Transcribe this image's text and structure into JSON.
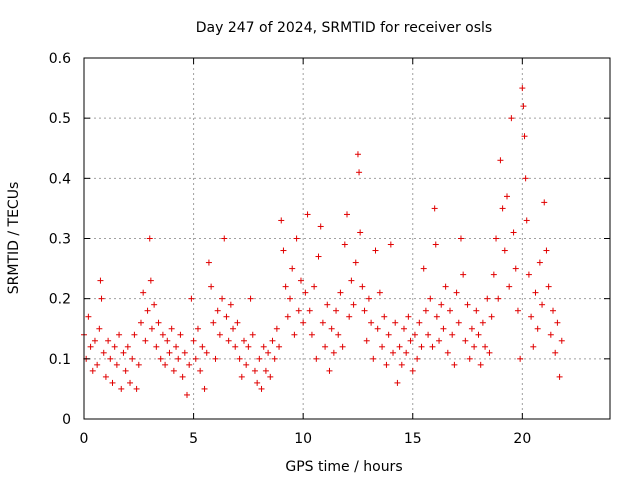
{
  "chart_data": {
    "type": "scatter",
    "title": "Day 247 of 2024, SRMTID for receiver osls",
    "xlabel": "GPS time / hours",
    "ylabel": "SRMTID / TECUs",
    "xlim": [
      0,
      24
    ],
    "ylim": [
      0,
      0.6
    ],
    "xticks": [
      0,
      5,
      10,
      15,
      20
    ],
    "xtick_labels": [
      "0",
      "5",
      "10",
      "15",
      "20"
    ],
    "yticks": [
      0,
      0.1,
      0.2,
      0.3,
      0.4,
      0.5,
      0.6
    ],
    "ytick_labels": [
      "0",
      "0.1",
      "0.2",
      "0.3",
      "0.4",
      "0.5",
      "0.6"
    ],
    "grid": true,
    "marker": "plus",
    "color": "#e00000",
    "series": [
      {
        "name": "SRMTID",
        "points": [
          [
            0.0,
            0.14
          ],
          [
            0.1,
            0.1
          ],
          [
            0.2,
            0.17
          ],
          [
            0.3,
            0.12
          ],
          [
            0.4,
            0.08
          ],
          [
            0.5,
            0.13
          ],
          [
            0.6,
            0.09
          ],
          [
            0.7,
            0.15
          ],
          [
            0.75,
            0.23
          ],
          [
            0.8,
            0.2
          ],
          [
            0.9,
            0.11
          ],
          [
            1.0,
            0.07
          ],
          [
            1.1,
            0.13
          ],
          [
            1.2,
            0.1
          ],
          [
            1.3,
            0.06
          ],
          [
            1.4,
            0.12
          ],
          [
            1.5,
            0.09
          ],
          [
            1.6,
            0.14
          ],
          [
            1.7,
            0.05
          ],
          [
            1.8,
            0.11
          ],
          [
            1.9,
            0.08
          ],
          [
            2.0,
            0.12
          ],
          [
            2.1,
            0.06
          ],
          [
            2.2,
            0.1
          ],
          [
            2.3,
            0.14
          ],
          [
            2.4,
            0.05
          ],
          [
            2.5,
            0.09
          ],
          [
            2.6,
            0.16
          ],
          [
            2.7,
            0.21
          ],
          [
            2.8,
            0.13
          ],
          [
            2.9,
            0.18
          ],
          [
            3.0,
            0.3
          ],
          [
            3.05,
            0.23
          ],
          [
            3.1,
            0.15
          ],
          [
            3.2,
            0.19
          ],
          [
            3.3,
            0.12
          ],
          [
            3.4,
            0.16
          ],
          [
            3.5,
            0.1
          ],
          [
            3.6,
            0.14
          ],
          [
            3.7,
            0.09
          ],
          [
            3.8,
            0.13
          ],
          [
            3.9,
            0.11
          ],
          [
            4.0,
            0.15
          ],
          [
            4.1,
            0.08
          ],
          [
            4.2,
            0.12
          ],
          [
            4.3,
            0.1
          ],
          [
            4.4,
            0.14
          ],
          [
            4.5,
            0.07
          ],
          [
            4.6,
            0.11
          ],
          [
            4.7,
            0.04
          ],
          [
            4.8,
            0.09
          ],
          [
            4.9,
            0.2
          ],
          [
            5.0,
            0.13
          ],
          [
            5.1,
            0.1
          ],
          [
            5.2,
            0.15
          ],
          [
            5.3,
            0.08
          ],
          [
            5.4,
            0.12
          ],
          [
            5.5,
            0.05
          ],
          [
            5.6,
            0.11
          ],
          [
            5.7,
            0.26
          ],
          [
            5.8,
            0.22
          ],
          [
            5.9,
            0.16
          ],
          [
            6.0,
            0.1
          ],
          [
            6.1,
            0.18
          ],
          [
            6.2,
            0.14
          ],
          [
            6.3,
            0.2
          ],
          [
            6.4,
            0.3
          ],
          [
            6.5,
            0.17
          ],
          [
            6.6,
            0.13
          ],
          [
            6.7,
            0.19
          ],
          [
            6.8,
            0.15
          ],
          [
            6.9,
            0.12
          ],
          [
            7.0,
            0.16
          ],
          [
            7.1,
            0.1
          ],
          [
            7.2,
            0.07
          ],
          [
            7.3,
            0.13
          ],
          [
            7.4,
            0.09
          ],
          [
            7.5,
            0.12
          ],
          [
            7.6,
            0.2
          ],
          [
            7.7,
            0.14
          ],
          [
            7.8,
            0.08
          ],
          [
            7.9,
            0.06
          ],
          [
            8.0,
            0.1
          ],
          [
            8.1,
            0.05
          ],
          [
            8.2,
            0.12
          ],
          [
            8.3,
            0.08
          ],
          [
            8.4,
            0.11
          ],
          [
            8.5,
            0.07
          ],
          [
            8.6,
            0.13
          ],
          [
            8.7,
            0.1
          ],
          [
            8.8,
            0.15
          ],
          [
            8.9,
            0.12
          ],
          [
            9.0,
            0.33
          ],
          [
            9.1,
            0.28
          ],
          [
            9.2,
            0.22
          ],
          [
            9.3,
            0.17
          ],
          [
            9.4,
            0.2
          ],
          [
            9.5,
            0.25
          ],
          [
            9.6,
            0.14
          ],
          [
            9.7,
            0.3
          ],
          [
            9.8,
            0.18
          ],
          [
            9.9,
            0.23
          ],
          [
            10.0,
            0.16
          ],
          [
            10.1,
            0.21
          ],
          [
            10.2,
            0.34
          ],
          [
            10.3,
            0.18
          ],
          [
            10.4,
            0.14
          ],
          [
            10.5,
            0.22
          ],
          [
            10.6,
            0.1
          ],
          [
            10.7,
            0.27
          ],
          [
            10.8,
            0.32
          ],
          [
            10.9,
            0.16
          ],
          [
            11.0,
            0.12
          ],
          [
            11.1,
            0.19
          ],
          [
            11.2,
            0.08
          ],
          [
            11.3,
            0.15
          ],
          [
            11.4,
            0.11
          ],
          [
            11.5,
            0.18
          ],
          [
            11.6,
            0.14
          ],
          [
            11.7,
            0.21
          ],
          [
            11.8,
            0.12
          ],
          [
            11.9,
            0.29
          ],
          [
            12.0,
            0.34
          ],
          [
            12.1,
            0.17
          ],
          [
            12.2,
            0.23
          ],
          [
            12.3,
            0.19
          ],
          [
            12.4,
            0.26
          ],
          [
            12.5,
            0.44
          ],
          [
            12.55,
            0.41
          ],
          [
            12.6,
            0.31
          ],
          [
            12.7,
            0.22
          ],
          [
            12.8,
            0.18
          ],
          [
            12.9,
            0.13
          ],
          [
            13.0,
            0.2
          ],
          [
            13.1,
            0.16
          ],
          [
            13.2,
            0.1
          ],
          [
            13.3,
            0.28
          ],
          [
            13.4,
            0.15
          ],
          [
            13.5,
            0.21
          ],
          [
            13.6,
            0.12
          ],
          [
            13.7,
            0.17
          ],
          [
            13.8,
            0.09
          ],
          [
            13.9,
            0.14
          ],
          [
            14.0,
            0.29
          ],
          [
            14.1,
            0.11
          ],
          [
            14.2,
            0.16
          ],
          [
            14.3,
            0.06
          ],
          [
            14.4,
            0.12
          ],
          [
            14.5,
            0.09
          ],
          [
            14.6,
            0.15
          ],
          [
            14.7,
            0.11
          ],
          [
            14.8,
            0.17
          ],
          [
            14.9,
            0.13
          ],
          [
            15.0,
            0.08
          ],
          [
            15.1,
            0.14
          ],
          [
            15.2,
            0.1
          ],
          [
            15.3,
            0.16
          ],
          [
            15.4,
            0.12
          ],
          [
            15.5,
            0.25
          ],
          [
            15.6,
            0.18
          ],
          [
            15.7,
            0.14
          ],
          [
            15.8,
            0.2
          ],
          [
            15.9,
            0.12
          ],
          [
            16.0,
            0.35
          ],
          [
            16.05,
            0.29
          ],
          [
            16.1,
            0.17
          ],
          [
            16.2,
            0.13
          ],
          [
            16.3,
            0.19
          ],
          [
            16.4,
            0.15
          ],
          [
            16.5,
            0.22
          ],
          [
            16.6,
            0.11
          ],
          [
            16.7,
            0.18
          ],
          [
            16.8,
            0.14
          ],
          [
            16.9,
            0.09
          ],
          [
            17.0,
            0.21
          ],
          [
            17.1,
            0.16
          ],
          [
            17.2,
            0.3
          ],
          [
            17.3,
            0.24
          ],
          [
            17.4,
            0.13
          ],
          [
            17.5,
            0.19
          ],
          [
            17.6,
            0.1
          ],
          [
            17.7,
            0.15
          ],
          [
            17.8,
            0.12
          ],
          [
            17.9,
            0.18
          ],
          [
            18.0,
            0.14
          ],
          [
            18.1,
            0.09
          ],
          [
            18.2,
            0.16
          ],
          [
            18.3,
            0.12
          ],
          [
            18.4,
            0.2
          ],
          [
            18.5,
            0.11
          ],
          [
            18.6,
            0.17
          ],
          [
            18.7,
            0.24
          ],
          [
            18.8,
            0.3
          ],
          [
            18.9,
            0.2
          ],
          [
            19.0,
            0.43
          ],
          [
            19.1,
            0.35
          ],
          [
            19.2,
            0.28
          ],
          [
            19.3,
            0.37
          ],
          [
            19.4,
            0.22
          ],
          [
            19.5,
            0.5
          ],
          [
            19.6,
            0.31
          ],
          [
            19.7,
            0.25
          ],
          [
            19.8,
            0.18
          ],
          [
            19.9,
            0.1
          ],
          [
            20.0,
            0.55
          ],
          [
            20.05,
            0.52
          ],
          [
            20.1,
            0.47
          ],
          [
            20.15,
            0.4
          ],
          [
            20.2,
            0.33
          ],
          [
            20.3,
            0.24
          ],
          [
            20.4,
            0.17
          ],
          [
            20.5,
            0.12
          ],
          [
            20.6,
            0.21
          ],
          [
            20.7,
            0.15
          ],
          [
            20.8,
            0.26
          ],
          [
            20.9,
            0.19
          ],
          [
            21.0,
            0.36
          ],
          [
            21.1,
            0.28
          ],
          [
            21.2,
            0.22
          ],
          [
            21.3,
            0.14
          ],
          [
            21.4,
            0.18
          ],
          [
            21.5,
            0.11
          ],
          [
            21.6,
            0.16
          ],
          [
            21.7,
            0.07
          ],
          [
            21.8,
            0.13
          ]
        ]
      }
    ]
  }
}
